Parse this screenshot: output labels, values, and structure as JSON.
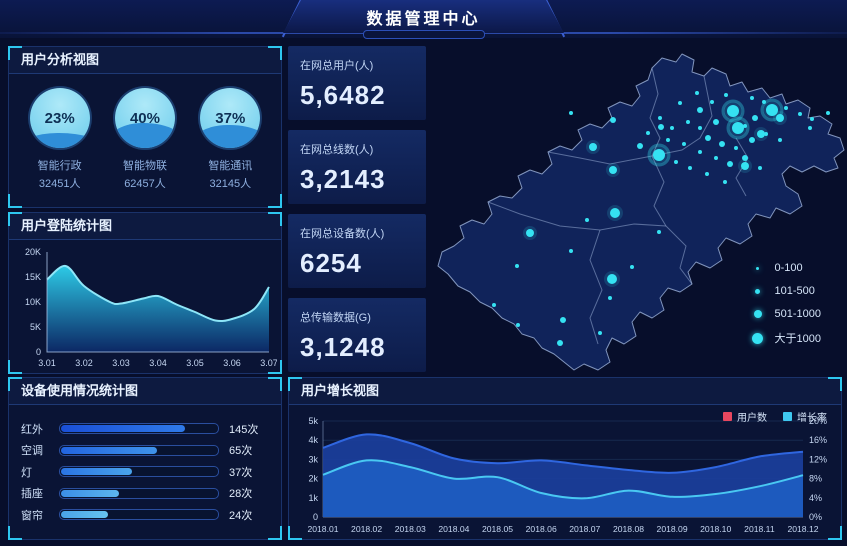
{
  "header": {
    "title": "数据管理中心"
  },
  "user_analysis": {
    "title": "用户分析视图",
    "gauges": [
      {
        "percent": "23%",
        "value": 23,
        "label": "智能行政",
        "count": "32451人"
      },
      {
        "percent": "40%",
        "value": 40,
        "label": "智能物联",
        "count": "62457人"
      },
      {
        "percent": "37%",
        "value": 37,
        "label": "智能通讯",
        "count": "32145人"
      }
    ]
  },
  "stats": {
    "cards": [
      {
        "label": "在网总用户(人)",
        "value": "5,6482"
      },
      {
        "label": "在网总线数(人)",
        "value": "3,2143"
      },
      {
        "label": "在网总设备数(人)",
        "value": "6254"
      },
      {
        "label": "总传输数据(G)",
        "value": "3,1248"
      }
    ]
  },
  "map": {
    "dot_color": "#35e2f2",
    "legend": [
      {
        "label": "0-100",
        "size": 3
      },
      {
        "label": "101-500",
        "size": 5
      },
      {
        "label": "501-1000",
        "size": 8
      },
      {
        "label": "大于1000",
        "size": 11
      }
    ],
    "dots": [
      [
        303,
        65,
        6
      ],
      [
        308,
        82,
        6
      ],
      [
        342,
        64,
        6
      ],
      [
        229,
        109,
        6
      ],
      [
        185,
        167,
        5
      ],
      [
        182,
        233,
        5
      ],
      [
        100,
        187,
        4
      ],
      [
        315,
        120,
        4
      ],
      [
        331,
        88,
        4
      ],
      [
        163,
        101,
        4
      ],
      [
        183,
        124,
        4
      ],
      [
        350,
        72,
        4
      ],
      [
        270,
        64,
        3
      ],
      [
        325,
        72,
        3
      ],
      [
        286,
        76,
        3
      ],
      [
        292,
        98,
        3
      ],
      [
        315,
        112,
        3
      ],
      [
        300,
        118,
        3
      ],
      [
        278,
        92,
        3
      ],
      [
        322,
        94,
        3
      ],
      [
        231,
        81,
        3
      ],
      [
        210,
        100,
        3
      ],
      [
        133,
        274,
        3
      ],
      [
        130,
        297,
        3
      ],
      [
        183,
        74,
        3
      ],
      [
        267,
        47,
        2
      ],
      [
        250,
        57,
        2
      ],
      [
        282,
        56,
        2
      ],
      [
        296,
        49,
        2
      ],
      [
        322,
        52,
        2
      ],
      [
        334,
        56,
        2
      ],
      [
        356,
        62,
        2
      ],
      [
        370,
        68,
        2
      ],
      [
        382,
        73,
        2
      ],
      [
        398,
        67,
        2
      ],
      [
        315,
        80,
        2
      ],
      [
        270,
        82,
        2
      ],
      [
        258,
        76,
        2
      ],
      [
        242,
        82,
        2
      ],
      [
        306,
        102,
        2
      ],
      [
        336,
        88,
        2
      ],
      [
        350,
        94,
        2
      ],
      [
        286,
        112,
        2
      ],
      [
        270,
        106,
        2
      ],
      [
        254,
        98,
        2
      ],
      [
        238,
        94,
        2
      ],
      [
        330,
        122,
        2
      ],
      [
        277,
        128,
        2
      ],
      [
        260,
        122,
        2
      ],
      [
        246,
        116,
        2
      ],
      [
        295,
        136,
        2
      ],
      [
        230,
        72,
        2
      ],
      [
        218,
        87,
        2
      ],
      [
        157,
        174,
        2
      ],
      [
        141,
        205,
        2
      ],
      [
        229,
        186,
        2
      ],
      [
        202,
        221,
        2
      ],
      [
        87,
        220,
        2
      ],
      [
        64,
        259,
        2
      ],
      [
        88,
        279,
        2
      ],
      [
        180,
        252,
        2
      ],
      [
        170,
        287,
        2
      ],
      [
        141,
        67,
        2
      ],
      [
        380,
        82,
        2
      ]
    ]
  },
  "chart_data": [
    {
      "id": "login",
      "type": "area",
      "title": "用户登陆统计图",
      "xticks": [
        "3.01",
        "3.02",
        "3.03",
        "3.04",
        "3.05",
        "3.06",
        "3.07"
      ],
      "yticks": [
        "0",
        "5K",
        "10K",
        "15K",
        "20K"
      ],
      "ylim": [
        0,
        20000
      ],
      "y_at_ticks": [
        14500,
        13200,
        9700,
        11200,
        8000,
        6600,
        13000
      ],
      "draw_points": [
        [
          0,
          14.5
        ],
        [
          0.5,
          17.2
        ],
        [
          1,
          13.2
        ],
        [
          1.7,
          10.0
        ],
        [
          2,
          9.7
        ],
        [
          2.6,
          10.7
        ],
        [
          3,
          11.2
        ],
        [
          3.5,
          9.5
        ],
        [
          4,
          8.0
        ],
        [
          4.55,
          6.3
        ],
        [
          5,
          6.6
        ],
        [
          5.6,
          8.6
        ],
        [
          6,
          13.0
        ]
      ],
      "line_color": "#8ee6f8"
    },
    {
      "id": "device_usage",
      "type": "bar",
      "title": "设备使用情况统计图",
      "orientation": "horizontal",
      "categories": [
        "红外",
        "空调",
        "灯",
        "插座",
        "窗帘"
      ],
      "values": [
        145,
        65,
        37,
        28,
        24
      ],
      "unit": "次",
      "value_labels": [
        "145次",
        "65次",
        "37次",
        "28次",
        "24次"
      ],
      "bar_fractions": [
        0.8,
        0.62,
        0.46,
        0.38,
        0.31
      ],
      "bar_colors": [
        [
          "#1a4fd6",
          "#2f7ae8"
        ],
        [
          "#2264e0",
          "#3f93ea"
        ],
        [
          "#2a74e4",
          "#4aa4ec"
        ],
        [
          "#3b8ee6",
          "#5cb6ee"
        ],
        [
          "#49a2e8",
          "#66c4f0"
        ]
      ]
    },
    {
      "id": "growth",
      "type": "line-area",
      "title": "用户增长视图",
      "categories": [
        "2018.01",
        "2018.02",
        "2018.03",
        "2018.04",
        "2018.05",
        "2018.06",
        "2018.07",
        "2018.08",
        "2018.09",
        "2018.10",
        "2018.11",
        "2018.12"
      ],
      "legend": [
        {
          "label": "用户数",
          "color": "#e8475f"
        },
        {
          "label": "增长率",
          "color": "#3fc8f0"
        }
      ],
      "left_yticks": [
        "0",
        "1k",
        "2k",
        "3k",
        "4k",
        "5k"
      ],
      "right_yticks": [
        "0%",
        "4%",
        "8%",
        "12%",
        "16%",
        "20%"
      ],
      "left_ylim": [
        0,
        5000
      ],
      "right_ylim": [
        0,
        20
      ],
      "series": [
        {
          "name": "用户数",
          "axis": "left",
          "color": "#2f66e0",
          "fill": "#1b3f9e",
          "values": [
            3600,
            4300,
            3850,
            3050,
            2800,
            2950,
            2700,
            2450,
            2300,
            2600,
            3150,
            3400
          ]
        },
        {
          "name": "增长率",
          "axis": "right",
          "color": "#49c8f2",
          "fill": "#1d5cc0",
          "values": [
            8.8,
            11.8,
            10.4,
            8.0,
            8.3,
            5.0,
            3.9,
            5.5,
            4.2,
            4.8,
            6.4,
            8.7
          ]
        }
      ]
    },
    {
      "id": "map_bubbles",
      "type": "scatter",
      "title": "",
      "legend_buckets": [
        "0-100",
        "101-500",
        "501-1000",
        "大于1000"
      ],
      "note": "bubble sizes bucketed per legend; positions in map.dots"
    }
  ]
}
